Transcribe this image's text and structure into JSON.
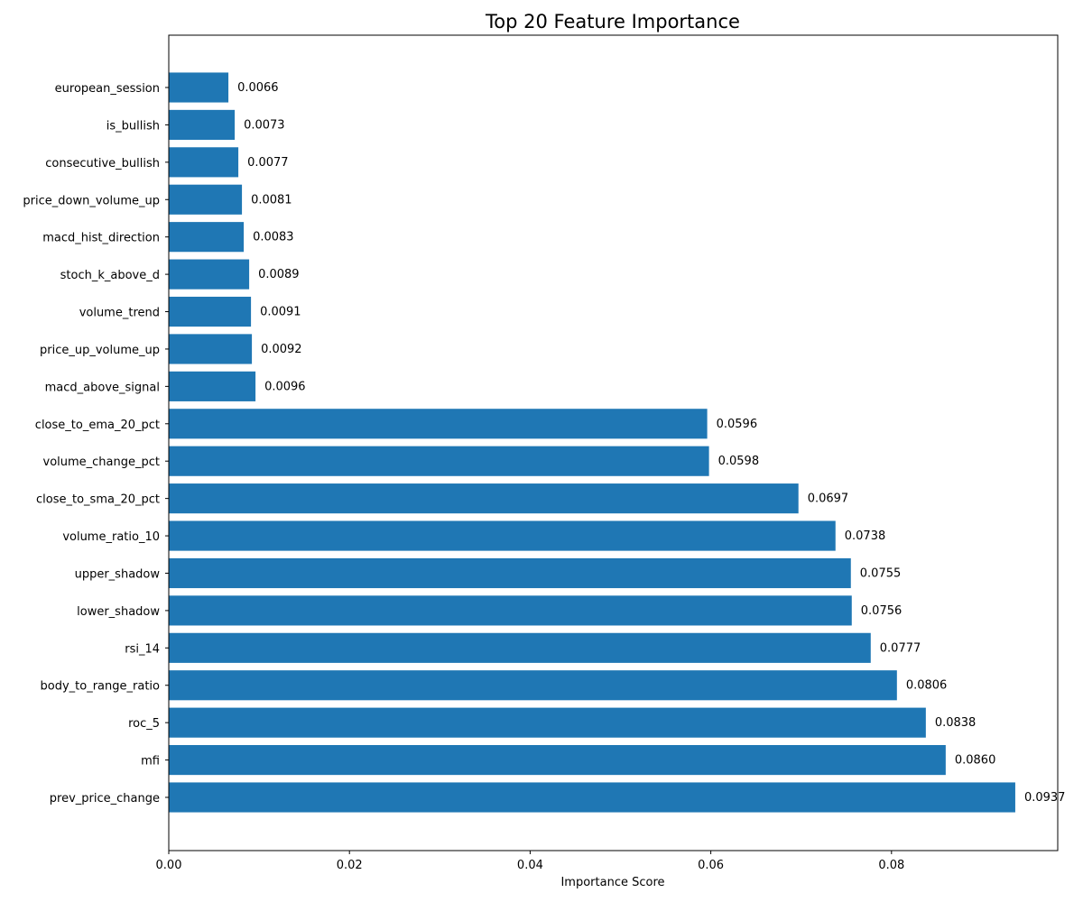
{
  "chart_data": {
    "type": "bar",
    "orientation": "horizontal",
    "title": "Top 20 Feature Importance",
    "xlabel": "Importance Score",
    "ylabel": "",
    "xlim": [
      0,
      0.0984
    ],
    "xticks": [
      "0.00",
      "0.02",
      "0.04",
      "0.06",
      "0.08"
    ],
    "bar_color": "#1f77b4",
    "grid": false,
    "categories": [
      "european_session",
      "is_bullish",
      "consecutive_bullish",
      "price_down_volume_up",
      "macd_hist_direction",
      "stoch_k_above_d",
      "volume_trend",
      "price_up_volume_up",
      "macd_above_signal",
      "close_to_ema_20_pct",
      "volume_change_pct",
      "close_to_sma_20_pct",
      "volume_ratio_10",
      "upper_shadow",
      "lower_shadow",
      "rsi_14",
      "body_to_range_ratio",
      "roc_5",
      "mfi",
      "prev_price_change"
    ],
    "values": [
      0.0066,
      0.0073,
      0.0077,
      0.0081,
      0.0083,
      0.0089,
      0.0091,
      0.0092,
      0.0096,
      0.0596,
      0.0598,
      0.0697,
      0.0738,
      0.0755,
      0.0756,
      0.0777,
      0.0806,
      0.0838,
      0.086,
      0.0937
    ],
    "value_labels": [
      "0.0066",
      "0.0073",
      "0.0077",
      "0.0081",
      "0.0083",
      "0.0089",
      "0.0091",
      "0.0092",
      "0.0096",
      "0.0596",
      "0.0598",
      "0.0697",
      "0.0738",
      "0.0755",
      "0.0756",
      "0.0777",
      "0.0806",
      "0.0838",
      "0.0860",
      "0.0937"
    ]
  }
}
